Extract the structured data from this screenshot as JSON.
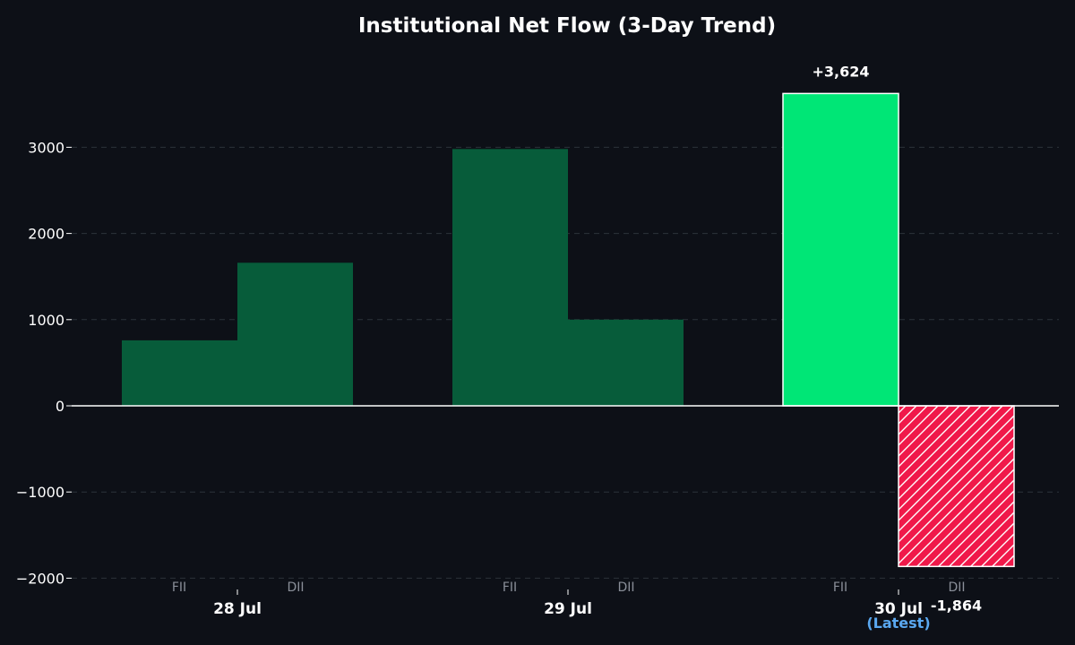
{
  "chart_data": {
    "type": "bar",
    "title": "Institutional Net Flow (3-Day Trend)",
    "categories": [
      "28 Jul",
      "29 Jul",
      "30 Jul"
    ],
    "sub_categories": [
      "FII",
      "DII"
    ],
    "latest_label": "(Latest)",
    "series": [
      {
        "name": "FII",
        "values": [
          760,
          2980,
          3624
        ]
      },
      {
        "name": "DII",
        "values": [
          1660,
          1000,
          -1864
        ]
      }
    ],
    "data_labels": [
      "+3,624",
      "-1,864"
    ],
    "ylim": [
      -2000,
      3700
    ],
    "yticks": [
      -2000,
      -1000,
      0,
      1000,
      2000,
      3000
    ],
    "ytick_labels": [
      "−2000",
      "−1000",
      "0",
      "1000",
      "2000",
      "3000"
    ],
    "grid": true,
    "colors": {
      "background": "#0d1017",
      "past": "#075c3a",
      "latest_positive": "#00e676",
      "latest_negative": "#f0194a",
      "latest_label": "#5aa8f0"
    }
  }
}
